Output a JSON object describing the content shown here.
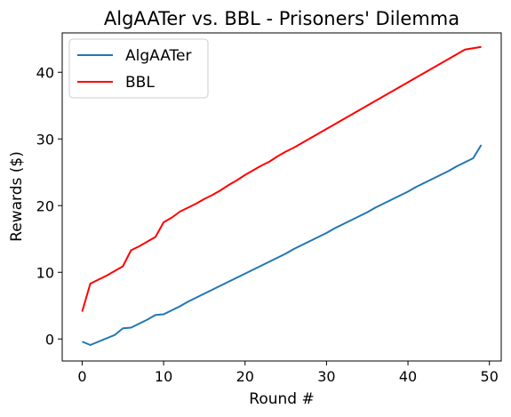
{
  "chart_data": {
    "type": "line",
    "title": "AlgAATer vs. BBL - Prisoners' Dilemma",
    "xlabel": "Round #",
    "ylabel": "Rewards ($)",
    "xlim": [
      -2.45,
      51.45
    ],
    "ylim": [
      -3.3,
      45.9
    ],
    "xticks": [
      0,
      10,
      20,
      30,
      40,
      50
    ],
    "yticks": [
      0,
      10,
      20,
      30,
      40
    ],
    "grid": false,
    "legend": "top-left",
    "series": [
      {
        "name": "AlgAATer",
        "color": "#1f77b4",
        "x": [
          0,
          1,
          2,
          3,
          4,
          5,
          6,
          7,
          8,
          9,
          10,
          11,
          12,
          13,
          14,
          15,
          16,
          17,
          18,
          19,
          20,
          21,
          22,
          23,
          24,
          25,
          26,
          27,
          28,
          29,
          30,
          31,
          32,
          33,
          34,
          35,
          36,
          37,
          38,
          39,
          40,
          41,
          42,
          43,
          44,
          45,
          46,
          47,
          48,
          49
        ],
        "y": [
          -0.4,
          -0.9,
          -0.4,
          0.1,
          0.6,
          1.6,
          1.7,
          2.3,
          2.9,
          3.6,
          3.7,
          4.3,
          4.9,
          5.6,
          6.2,
          6.8,
          7.4,
          8.0,
          8.6,
          9.2,
          9.8,
          10.4,
          11.0,
          11.6,
          12.2,
          12.8,
          13.5,
          14.1,
          14.7,
          15.3,
          15.9,
          16.6,
          17.2,
          17.8,
          18.4,
          19.0,
          19.7,
          20.3,
          20.9,
          21.5,
          22.1,
          22.8,
          23.4,
          24.0,
          24.6,
          25.2,
          25.9,
          26.5,
          27.1,
          29.1
        ]
      },
      {
        "name": "BBL",
        "color": "#ff0000",
        "x": [
          0,
          1,
          2,
          3,
          4,
          5,
          6,
          7,
          8,
          9,
          10,
          11,
          12,
          13,
          14,
          15,
          16,
          17,
          18,
          19,
          20,
          21,
          22,
          23,
          24,
          25,
          26,
          27,
          28,
          29,
          30,
          31,
          32,
          33,
          34,
          35,
          36,
          37,
          38,
          39,
          40,
          41,
          42,
          43,
          44,
          45,
          46,
          47,
          48,
          49
        ],
        "y": [
          4.1,
          8.3,
          8.9,
          9.5,
          10.2,
          10.9,
          13.3,
          13.9,
          14.6,
          15.3,
          17.5,
          18.2,
          19.1,
          19.7,
          20.3,
          21.0,
          21.6,
          22.3,
          23.1,
          23.8,
          24.6,
          25.3,
          26.0,
          26.6,
          27.4,
          28.1,
          28.7,
          29.4,
          30.1,
          30.8,
          31.5,
          32.2,
          32.9,
          33.6,
          34.3,
          35.0,
          35.7,
          36.4,
          37.1,
          37.8,
          38.5,
          39.2,
          39.9,
          40.6,
          41.3,
          42.0,
          42.7,
          43.4,
          43.6,
          43.8
        ]
      }
    ]
  }
}
